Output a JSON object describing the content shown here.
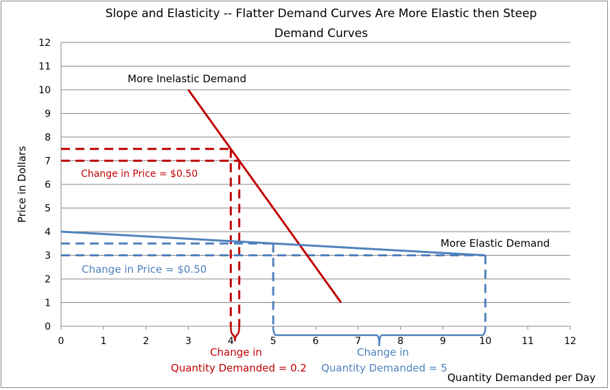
{
  "chart_data": {
    "type": "line",
    "title_lines": [
      "Slope and Elasticity -- Flatter Demand Curves Are More Elastic then Steep",
      "Demand Curves"
    ],
    "xlabel": "Quantity Demanded per Day",
    "ylabel": "Price in Dollars",
    "xlim": [
      0,
      12
    ],
    "ylim": [
      0,
      12
    ],
    "xticks": [
      0,
      1,
      2,
      3,
      4,
      5,
      6,
      7,
      8,
      9,
      10,
      11,
      12
    ],
    "yticks": [
      0,
      1,
      2,
      3,
      4,
      5,
      6,
      7,
      8,
      9,
      10,
      11,
      12
    ],
    "grid": "horizontal",
    "series": [
      {
        "name": "More Inelastic Demand",
        "color": "#C00000",
        "points": [
          [
            3,
            10
          ],
          [
            6.6,
            1
          ]
        ]
      },
      {
        "name": "More Elastic Demand",
        "color": "#4F81BD",
        "points": [
          [
            0,
            4
          ],
          [
            10,
            3
          ]
        ]
      }
    ],
    "annotations": {
      "inelastic": {
        "color": "#C00000",
        "prices": [
          7.5,
          7
        ],
        "quantities": [
          4,
          4.2
        ],
        "price_change_label": "Change in Price = $0.50",
        "quantity_change_label": [
          "Change in",
          "Quantity Demanded = 0.2"
        ]
      },
      "elastic": {
        "color": "#4F81BD",
        "prices": [
          3.5,
          3
        ],
        "quantities": [
          5,
          10
        ],
        "price_change_label": "Change in Price = $0.50",
        "quantity_change_label": [
          "Change in",
          "Quantity Demanded = 5"
        ]
      }
    }
  }
}
